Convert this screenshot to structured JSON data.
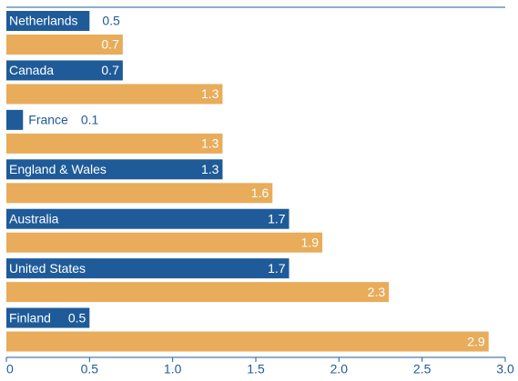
{
  "chart_data": {
    "type": "bar",
    "orientation": "horizontal",
    "categories": [
      "Netherlands",
      "Canada",
      "France",
      "England & Wales",
      "Australia",
      "United States",
      "Finland"
    ],
    "series": [
      {
        "color": "#1f5b99",
        "values": [
          0.5,
          0.7,
          0.1,
          1.3,
          1.7,
          1.7,
          0.5
        ]
      },
      {
        "color": "#e8ac5a",
        "values": [
          0.7,
          1.3,
          1.3,
          1.6,
          1.9,
          2.3,
          2.9
        ]
      }
    ],
    "xlim": [
      0,
      3
    ],
    "xticks": [
      0,
      0.5,
      {
        "value": 1,
        "label": "1.0"
      },
      1.5,
      {
        "value": 2,
        "label": "2.0"
      },
      2.5,
      {
        "value": 3,
        "label": "3.0"
      }
    ]
  }
}
